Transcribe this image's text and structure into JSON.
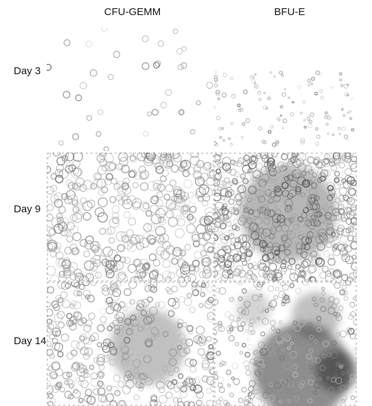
{
  "columns": [
    "CFU-GEMM",
    "BFU-E"
  ],
  "rows": [
    "Day 3",
    "Day 9",
    "Day 14"
  ]
}
